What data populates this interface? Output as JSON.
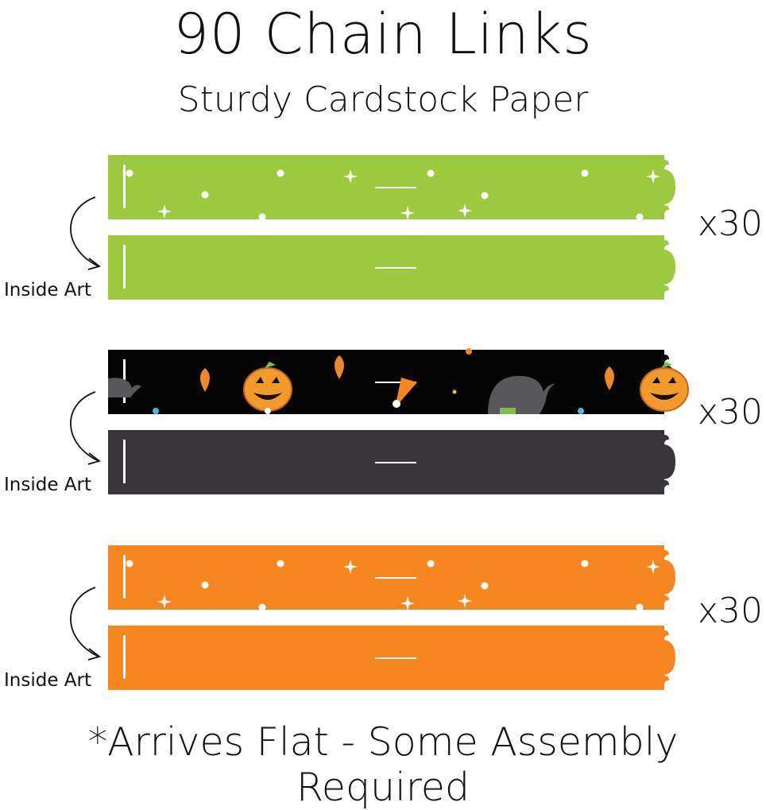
{
  "title": "90 Chain Links",
  "subtitle": "Sturdy Cardstock Paper",
  "footer": "*Arrives Flat - Some Assembly Required",
  "groups": [
    {
      "count": "x30",
      "inside_label": "Inside Art",
      "outside_color": "#9bca3e",
      "inside_color": "#9bca3e",
      "pattern": "white dots and stars"
    },
    {
      "count": "x30",
      "inside_label": "Inside Art",
      "outside_color": "#050505",
      "inside_color": "#38363a",
      "pattern": "halloween pumpkins, witch hats, leaves, candy corn"
    },
    {
      "count": "x30",
      "inside_label": "Inside Art",
      "outside_color": "#f68620",
      "inside_color": "#f68620",
      "pattern": "white dots and stars"
    }
  ],
  "icons": [
    "curved-arrow-icon",
    "pumpkin-icon",
    "witch-hat-icon",
    "leaf-icon",
    "candy-corn-icon",
    "star-icon"
  ]
}
